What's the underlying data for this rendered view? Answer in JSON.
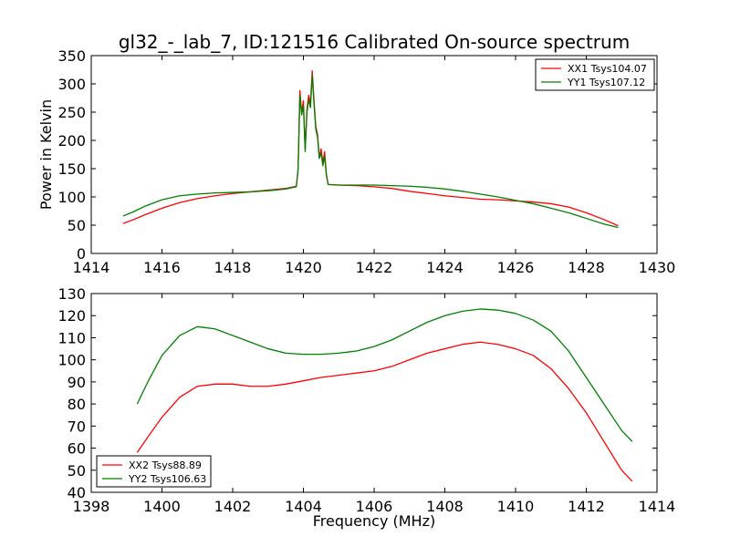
{
  "title": "gl32_-_lab_7, ID:121516 Calibrated On-source spectrum",
  "chart_data": [
    {
      "type": "line",
      "ylabel": "Power in Kelvin",
      "xlabel": "",
      "xlim": [
        1414,
        1430
      ],
      "ylim": [
        0,
        350
      ],
      "xticks": [
        1414,
        1416,
        1418,
        1420,
        1422,
        1424,
        1426,
        1428,
        1430
      ],
      "yticks": [
        0,
        50,
        100,
        150,
        200,
        250,
        300,
        350
      ],
      "legend_position": "top-right",
      "series": [
        {
          "name": "XX1 Tsys104.07",
          "color": "#ff0000",
          "x": [
            1414.9,
            1415.2,
            1415.5,
            1416.0,
            1416.5,
            1417.0,
            1417.5,
            1418.0,
            1418.5,
            1419.0,
            1419.5,
            1419.8,
            1419.85,
            1419.9,
            1419.95,
            1420.0,
            1420.05,
            1420.1,
            1420.15,
            1420.2,
            1420.25,
            1420.3,
            1420.35,
            1420.4,
            1420.45,
            1420.5,
            1420.55,
            1420.6,
            1420.65,
            1420.7,
            1421.0,
            1421.5,
            1422.0,
            1422.5,
            1423.0,
            1423.5,
            1424.0,
            1424.5,
            1425.0,
            1425.5,
            1426.0,
            1426.5,
            1427.0,
            1427.5,
            1428.0,
            1428.5,
            1428.9
          ],
          "values": [
            53,
            60,
            68,
            80,
            90,
            97,
            102,
            106,
            109,
            112,
            115,
            119,
            150,
            288,
            250,
            270,
            185,
            255,
            280,
            265,
            323,
            270,
            225,
            210,
            170,
            185,
            160,
            180,
            140,
            122,
            121,
            120,
            118,
            115,
            110,
            106,
            102,
            99,
            96,
            95,
            93,
            91,
            88,
            82,
            72,
            60,
            49
          ]
        },
        {
          "name": "YY1 Tsys107.12",
          "color": "#008000",
          "x": [
            1414.9,
            1415.2,
            1415.5,
            1416.0,
            1416.5,
            1417.0,
            1417.5,
            1418.0,
            1418.5,
            1419.0,
            1419.5,
            1419.8,
            1419.85,
            1419.9,
            1419.95,
            1420.0,
            1420.05,
            1420.1,
            1420.15,
            1420.2,
            1420.25,
            1420.3,
            1420.35,
            1420.4,
            1420.45,
            1420.5,
            1420.55,
            1420.6,
            1420.65,
            1420.7,
            1421.0,
            1421.5,
            1422.0,
            1422.5,
            1423.0,
            1423.5,
            1424.0,
            1424.5,
            1425.0,
            1425.5,
            1426.0,
            1426.5,
            1427.0,
            1427.5,
            1428.0,
            1428.5,
            1428.9
          ],
          "values": [
            66,
            74,
            83,
            95,
            102,
            105,
            107,
            108,
            109,
            111,
            114,
            118,
            148,
            280,
            245,
            262,
            180,
            250,
            272,
            258,
            316,
            265,
            220,
            205,
            168,
            178,
            155,
            172,
            138,
            122,
            121,
            121,
            121,
            120,
            119,
            117,
            114,
            110,
            105,
            100,
            94,
            88,
            80,
            72,
            62,
            52,
            46
          ]
        }
      ]
    },
    {
      "type": "line",
      "ylabel": "",
      "xlabel": "Frequency (MHz)",
      "xlim": [
        1398,
        1414
      ],
      "ylim": [
        40,
        130
      ],
      "xticks": [
        1398,
        1400,
        1402,
        1404,
        1406,
        1408,
        1410,
        1412,
        1414
      ],
      "yticks": [
        40,
        50,
        60,
        70,
        80,
        90,
        100,
        110,
        120,
        130
      ],
      "legend_position": "bottom-left",
      "series": [
        {
          "name": "XX2 Tsys88.89",
          "color": "#ff0000",
          "x": [
            1399.3,
            1399.6,
            1400.0,
            1400.5,
            1401.0,
            1401.5,
            1402.0,
            1402.5,
            1403.0,
            1403.5,
            1404.0,
            1404.5,
            1405.0,
            1405.5,
            1406.0,
            1406.5,
            1407.0,
            1407.5,
            1408.0,
            1408.5,
            1409.0,
            1409.5,
            1410.0,
            1410.5,
            1411.0,
            1411.5,
            1412.0,
            1412.5,
            1413.0,
            1413.3
          ],
          "values": [
            58,
            65,
            74,
            83,
            88,
            89,
            89,
            88,
            88,
            89,
            90.5,
            92,
            93,
            94,
            95,
            97,
            100,
            103,
            105,
            107,
            108,
            107,
            105,
            102,
            96,
            87,
            76,
            63,
            50,
            45
          ]
        },
        {
          "name": "YY2 Tsys106.63",
          "color": "#008000",
          "x": [
            1399.3,
            1399.6,
            1400.0,
            1400.5,
            1401.0,
            1401.5,
            1402.0,
            1402.5,
            1403.0,
            1403.5,
            1404.0,
            1404.5,
            1405.0,
            1405.5,
            1406.0,
            1406.5,
            1407.0,
            1407.5,
            1408.0,
            1408.5,
            1409.0,
            1409.5,
            1410.0,
            1410.5,
            1411.0,
            1411.5,
            1412.0,
            1412.5,
            1413.0,
            1413.3
          ],
          "values": [
            80,
            90,
            102,
            111,
            115,
            114,
            111,
            108,
            105,
            103,
            102.5,
            102.5,
            103,
            104,
            106,
            109,
            113,
            117,
            120,
            122,
            123,
            122.5,
            121,
            118,
            113,
            104,
            92,
            80,
            68,
            63
          ]
        }
      ]
    }
  ]
}
